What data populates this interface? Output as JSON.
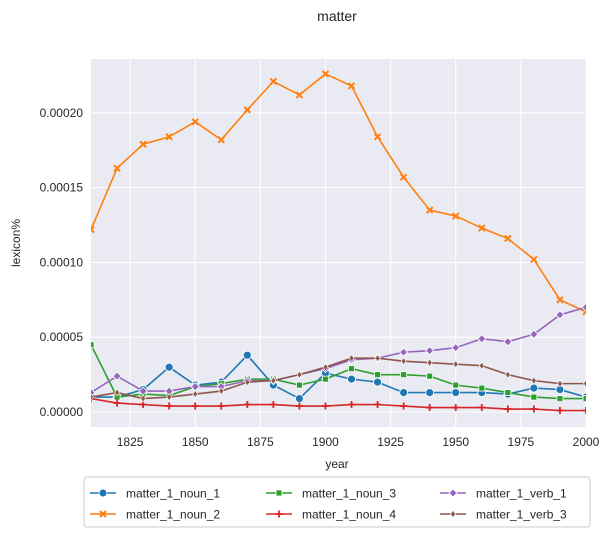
{
  "chart_data": {
    "type": "line",
    "title": "matter",
    "xlabel": "year",
    "ylabel": "lexicon%",
    "xlim": [
      1810,
      2000
    ],
    "ylim": [
      -1e-05,
      0.000236
    ],
    "xticks": [
      1825,
      1850,
      1875,
      1900,
      1925,
      1950,
      1975,
      2000
    ],
    "yticks": [
      0.0,
      5e-05,
      0.0001,
      0.00015,
      0.0002
    ],
    "ytick_labels": [
      "0.00000",
      "0.00005",
      "0.00010",
      "0.00015",
      "0.00020"
    ],
    "grid": true,
    "legend_placement": "bottom-center",
    "x": [
      1810,
      1820,
      1830,
      1840,
      1850,
      1860,
      1870,
      1880,
      1890,
      1900,
      1910,
      1920,
      1930,
      1940,
      1950,
      1960,
      1970,
      1980,
      1990,
      2000
    ],
    "series": [
      {
        "name": "matter_1_noun_1",
        "color": "#1f77b4",
        "marker": "circle",
        "values": [
          1e-05,
          1e-05,
          1.5e-05,
          3e-05,
          1.8e-05,
          2e-05,
          3.8e-05,
          1.8e-05,
          9e-06,
          2.6e-05,
          2.2e-05,
          2e-05,
          1.3e-05,
          1.3e-05,
          1.3e-05,
          1.3e-05,
          1.2e-05,
          1.6e-05,
          1.5e-05,
          1e-05
        ]
      },
      {
        "name": "matter_1_noun_2",
        "color": "#ff7f0e",
        "marker": "x",
        "values": [
          0.000122,
          0.000163,
          0.000179,
          0.000184,
          0.000194,
          0.000182,
          0.000202,
          0.000221,
          0.000212,
          0.000226,
          0.000218,
          0.000184,
          0.000157,
          0.000135,
          0.000131,
          0.000123,
          0.000116,
          0.000102,
          7.5e-05,
          6.7e-05
        ]
      },
      {
        "name": "matter_1_noun_3",
        "color": "#2ca02c",
        "marker": "square",
        "values": [
          4.5e-05,
          1e-05,
          1.2e-05,
          1.1e-05,
          1.7e-05,
          1.9e-05,
          2.2e-05,
          2.2e-05,
          1.8e-05,
          2.2e-05,
          2.9e-05,
          2.5e-05,
          2.5e-05,
          2.4e-05,
          1.8e-05,
          1.6e-05,
          1.3e-05,
          1e-05,
          9e-06,
          9e-06
        ]
      },
      {
        "name": "matter_1_noun_4",
        "color": "#d62728",
        "marker": "plus",
        "values": [
          9e-06,
          6e-06,
          5e-06,
          4e-06,
          4e-06,
          4e-06,
          5e-06,
          5e-06,
          4e-06,
          4e-06,
          5e-06,
          5e-06,
          4e-06,
          3e-06,
          3e-06,
          3e-06,
          2e-06,
          2e-06,
          1e-06,
          1e-06
        ]
      },
      {
        "name": "matter_1_verb_1",
        "color": "#9467bd",
        "marker": "diamond",
        "values": [
          1.3e-05,
          2.4e-05,
          1.4e-05,
          1.4e-05,
          1.7e-05,
          1.7e-05,
          2.1e-05,
          2.1e-05,
          2.5e-05,
          2.9e-05,
          3.5e-05,
          3.6e-05,
          4e-05,
          4.1e-05,
          4.3e-05,
          4.9e-05,
          4.7e-05,
          5.2e-05,
          6.5e-05,
          7e-05
        ]
      },
      {
        "name": "matter_1_verb_3",
        "color": "#8c564b",
        "marker": "thin-diamond",
        "values": [
          1e-05,
          1.3e-05,
          9e-06,
          1e-05,
          1.2e-05,
          1.4e-05,
          2e-05,
          2.1e-05,
          2.5e-05,
          3e-05,
          3.6e-05,
          3.6e-05,
          3.4e-05,
          3.3e-05,
          3.2e-05,
          3.1e-05,
          2.5e-05,
          2.1e-05,
          1.9e-05,
          1.9e-05
        ]
      }
    ]
  }
}
